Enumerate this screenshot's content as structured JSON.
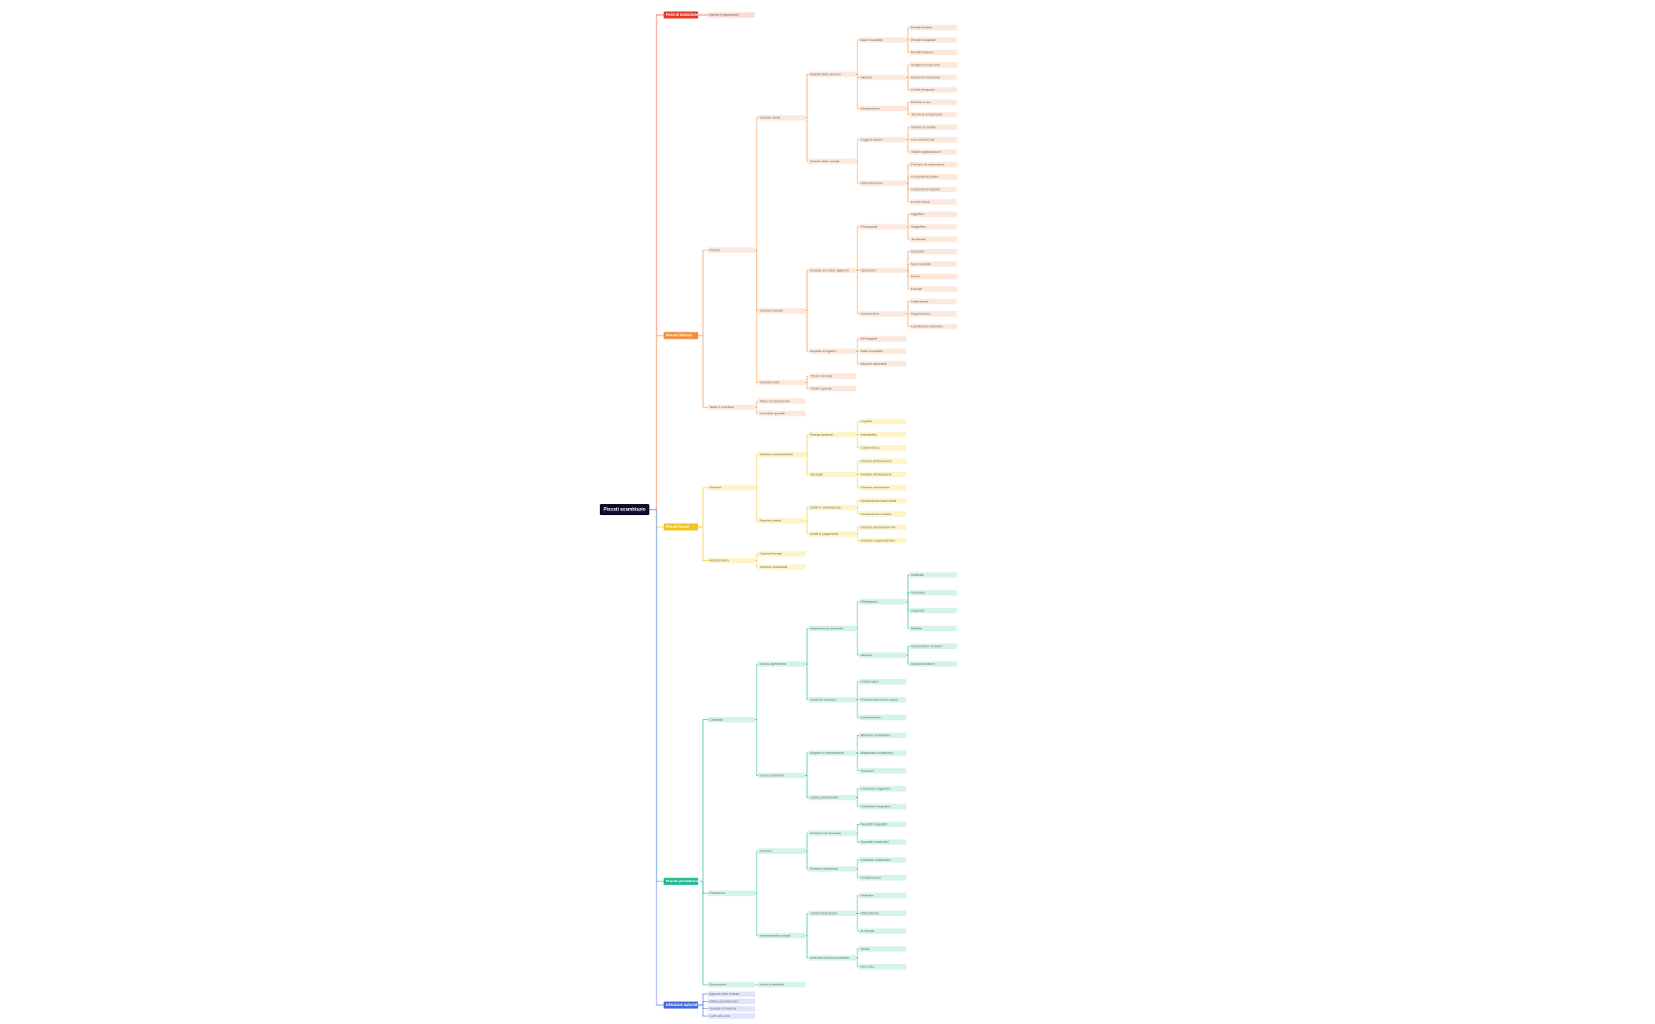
{
  "tree": {
    "label": "Piscati scambiazio",
    "children": [
      {
        "label": "Fonti di traduzione",
        "color": "#e8412c",
        "fill": "#fcdcd6",
        "children": [
          {
            "label": "Norme e regolamenti"
          }
        ]
      },
      {
        "label": "Piscati tributari",
        "color": "#f0903a",
        "fill": "#fde9dc",
        "children": [
          {
            "label": "Imposte",
            "children": [
              {
                "label": "Imposte dirette",
                "children": [
                  {
                    "label": "Reddito delle persone",
                    "children": [
                      {
                        "label": "Base imponibile",
                        "children": [
                          {
                            "label": "Redditi fondiari"
                          },
                          {
                            "label": "Redditi di capitale"
                          },
                          {
                            "label": "Redditi di lavoro"
                          }
                        ]
                      },
                      {
                        "label": "Aliquote",
                        "children": [
                          {
                            "label": "Scaglioni progressivi"
                          },
                          {
                            "label": "Detrazioni d'imposta"
                          },
                          {
                            "label": "Crediti d'imposta"
                          }
                        ]
                      },
                      {
                        "label": "Dichiarazione",
                        "children": [
                          {
                            "label": "Modello unico"
                          },
                          {
                            "label": "Termini di versamento"
                          }
                        ]
                      }
                    ]
                  },
                  {
                    "label": "Reddito delle società",
                    "children": [
                      {
                        "label": "Soggetti passivi",
                        "children": [
                          {
                            "label": "Società di capitali"
                          },
                          {
                            "label": "Enti commerciali"
                          },
                          {
                            "label": "Stabili organizzazioni"
                          }
                        ]
                      },
                      {
                        "label": "Determinazione",
                        "children": [
                          {
                            "label": "Principio di competenza"
                          },
                          {
                            "label": "Componenti positivi"
                          },
                          {
                            "label": "Componenti negativi"
                          },
                          {
                            "label": "Perdite fiscali"
                          }
                        ]
                      }
                    ]
                  }
                ]
              },
              {
                "label": "Imposte indirette",
                "children": [
                  {
                    "label": "Imposta sul valore aggiunto",
                    "children": [
                      {
                        "label": "Presupposti",
                        "children": [
                          {
                            "label": "Oggettivo"
                          },
                          {
                            "label": "Soggettivo"
                          },
                          {
                            "label": "Territoriale"
                          }
                        ]
                      },
                      {
                        "label": "Operazioni",
                        "children": [
                          {
                            "label": "Imponibili"
                          },
                          {
                            "label": "Non imponibili"
                          },
                          {
                            "label": "Esenti"
                          },
                          {
                            "label": "Escluse"
                          }
                        ]
                      },
                      {
                        "label": "Adempimenti",
                        "children": [
                          {
                            "label": "Fatturazione"
                          },
                          {
                            "label": "Registrazione"
                          },
                          {
                            "label": "Liquidazione periodica"
                          }
                        ]
                      }
                    ]
                  },
                  {
                    "label": "Imposta di registro",
                    "children": [
                      {
                        "label": "Atti soggetti"
                      },
                      {
                        "label": "Base imponibile"
                      },
                      {
                        "label": "Aliquote applicabili"
                      }
                    ]
                  }
                ]
              },
              {
                "label": "Imposte locali",
                "children": [
                  {
                    "label": "Tributi comunali"
                  },
                  {
                    "label": "Tributi regionali"
                  }
                ]
              }
            ]
          },
          {
            "label": "Tasse e contributi",
            "children": [
              {
                "label": "Tasse di concessione"
              },
              {
                "label": "Contributi speciali"
              }
            ]
          }
        ]
      },
      {
        "label": "Piscati fiscali",
        "color": "#f3c623",
        "fill": "#fdf4c8",
        "children": [
          {
            "label": "Sanzioni",
            "children": [
              {
                "label": "Sanzioni amministrative",
                "children": [
                  {
                    "label": "Principi generali",
                    "children": [
                      {
                        "label": "Legalità"
                      },
                      {
                        "label": "Imputabilità"
                      },
                      {
                        "label": "Colpevolezza"
                      }
                    ]
                  },
                  {
                    "label": "Tipologie",
                    "children": [
                      {
                        "label": "Omessa dichiarazione"
                      },
                      {
                        "label": "Infedele dichiarazione"
                      },
                      {
                        "label": "Omesso versamento"
                      }
                    ]
                  }
                ]
              },
              {
                "label": "Sanzioni penali",
                "children": [
                  {
                    "label": "Delitti in dichiarazione",
                    "children": [
                      {
                        "label": "Dichiarazione fraudolenta"
                      },
                      {
                        "label": "Dichiarazione infedele"
                      }
                    ]
                  },
                  {
                    "label": "Delitti in pagamento",
                    "children": [
                      {
                        "label": "Omesso versamento IVA"
                      },
                      {
                        "label": "Indebita compensazione"
                      }
                    ]
                  }
                ]
              }
            ]
          },
          {
            "label": "Accertamento",
            "children": [
              {
                "label": "Controlli formali"
              },
              {
                "label": "Verifiche sostanziali"
              }
            ]
          }
        ]
      },
      {
        "label": "Piscati previdenziali",
        "color": "#17b890",
        "fill": "#d4f3ea",
        "children": [
          {
            "label": "Contributi",
            "children": [
              {
                "label": "Lavoro dipendente",
                "children": [
                  {
                    "label": "Assicurazione generale",
                    "children": [
                      {
                        "label": "Obbligatoria",
                        "children": [
                          {
                            "label": "Invalidità"
                          },
                          {
                            "label": "Vecchiaia"
                          },
                          {
                            "label": "Superstiti"
                          },
                          {
                            "label": "Malattia"
                          }
                        ]
                      },
                      {
                        "label": "Aliquote",
                        "children": [
                          {
                            "label": "Quota datore di lavoro"
                          },
                          {
                            "label": "Quota lavoratore"
                          }
                        ]
                      }
                    ]
                  },
                  {
                    "label": "Gestione separata",
                    "children": [
                      {
                        "label": "Collaboratori"
                      },
                      {
                        "label": "Professionisti senza cassa"
                      },
                      {
                        "label": "Amministratori"
                      }
                    ]
                  }
                ]
              },
              {
                "label": "Lavoro autonomo",
                "children": [
                  {
                    "label": "Artigiani e commercianti",
                    "children": [
                      {
                        "label": "Minimale contributivo"
                      },
                      {
                        "label": "Massimale contributivo"
                      },
                      {
                        "label": "Riduzioni"
                      }
                    ]
                  },
                  {
                    "label": "Casse professionali",
                    "children": [
                      {
                        "label": "Contributo soggettivo"
                      },
                      {
                        "label": "Contributo integrativo"
                      }
                    ]
                  }
                ]
              }
            ]
          },
          {
            "label": "Prestazioni",
            "children": [
              {
                "label": "Pensioni",
                "children": [
                  {
                    "label": "Pensione di vecchiaia",
                    "children": [
                      {
                        "label": "Requisiti anagrafici"
                      },
                      {
                        "label": "Requisiti contributivi"
                      }
                    ]
                  },
                  {
                    "label": "Pensione anticipata",
                    "children": [
                      {
                        "label": "Anzianità contributiva"
                      },
                      {
                        "label": "Penalizzazioni"
                      }
                    ]
                  }
                ]
              },
              {
                "label": "Ammortizzatori sociali",
                "children": [
                  {
                    "label": "Cassa integrazione",
                    "children": [
                      {
                        "label": "Ordinaria"
                      },
                      {
                        "label": "Straordinaria"
                      },
                      {
                        "label": "In deroga"
                      }
                    ]
                  },
                  {
                    "label": "Indennità di disoccupazione",
                    "children": [
                      {
                        "label": "NASpI"
                      },
                      {
                        "label": "DIS-COLL"
                      }
                    ]
                  }
                ]
              }
            ]
          },
          {
            "label": "Riscossione",
            "children": [
              {
                "label": "Avvisi di addebito"
              }
            ]
          }
        ]
      },
      {
        "label": "Istituzioni autoriali",
        "color": "#4a6ee0",
        "fill": "#dfe5fb",
        "children": [
          {
            "label": "Agenzia delle Entrate"
          },
          {
            "label": "Istituto previdenziale"
          },
          {
            "label": "Guardia di Finanza"
          },
          {
            "label": "Corte dei conti"
          }
        ]
      }
    ]
  }
}
